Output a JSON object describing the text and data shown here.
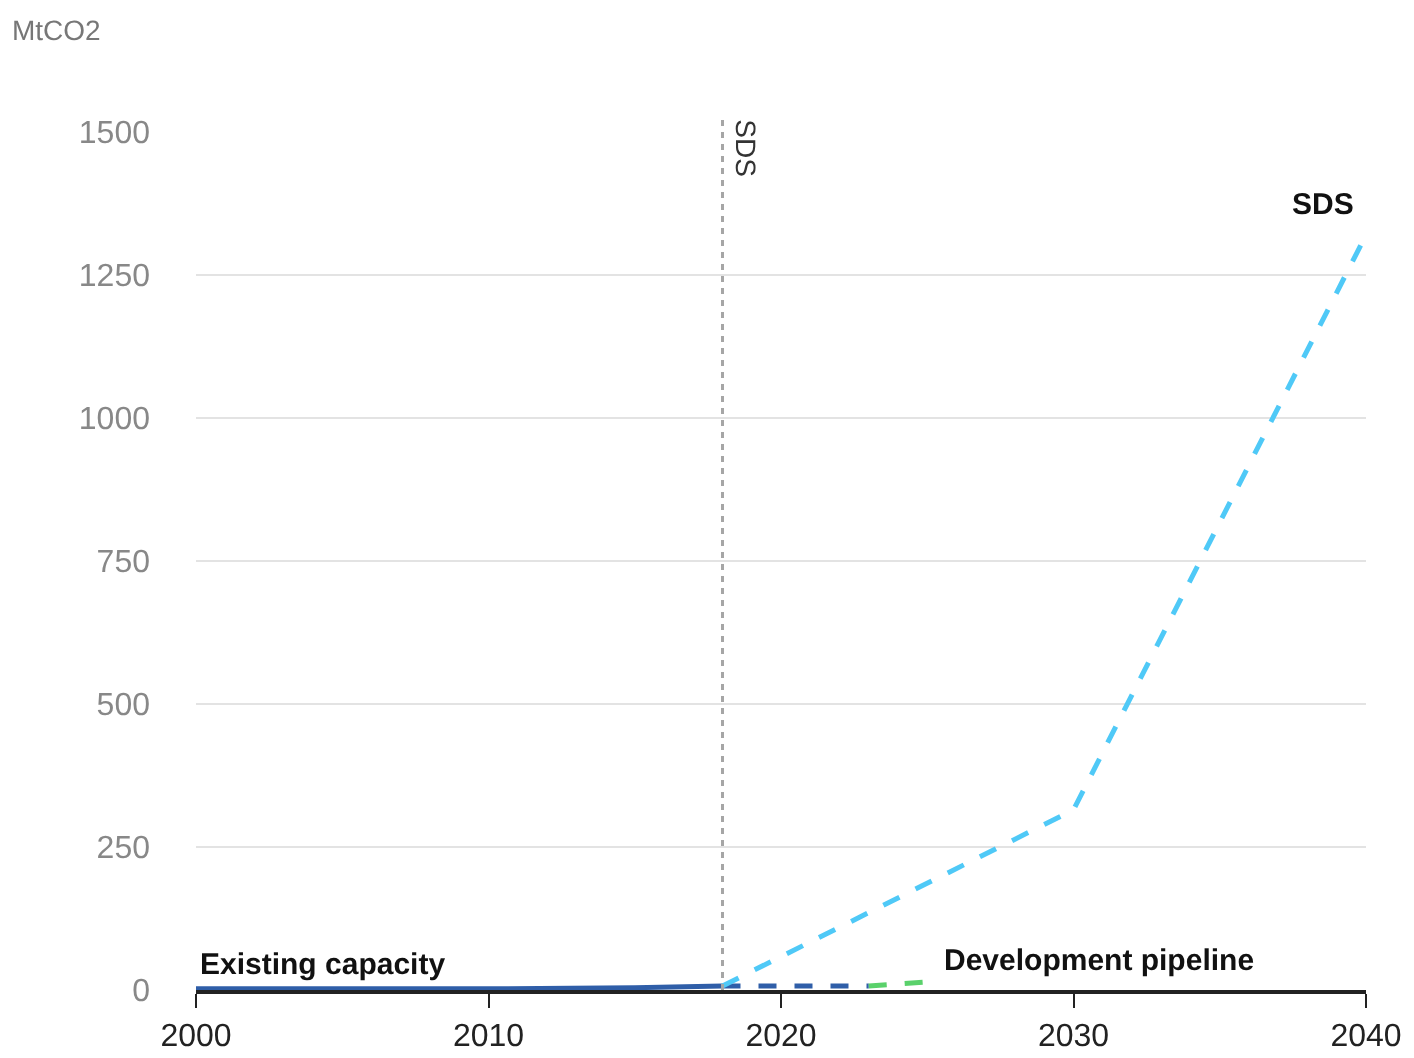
{
  "chart_data": {
    "type": "line",
    "ylabel": "MtCO2",
    "xlim": [
      2000,
      2040
    ],
    "xticks": [
      2000,
      2010,
      2020,
      2030,
      2040
    ],
    "ylim": [
      0,
      1500
    ],
    "yticks": [
      0,
      250,
      500,
      750,
      1000,
      1250,
      1500
    ],
    "grid": "y",
    "legend": false,
    "marker": "none",
    "ref_lines": [
      {
        "axis": "x",
        "value": 2018,
        "label": "SDS",
        "color": "#a6a6a6",
        "line_style": "dotted"
      }
    ],
    "series": [
      {
        "name": "Existing capacity",
        "color": "#2f5ea8",
        "line_style": "solid",
        "x": [
          2000,
          2010,
          2015,
          2018
        ],
        "values": [
          2,
          2,
          4,
          7
        ]
      },
      {
        "color": "#2f5ea8",
        "line_style": "dashed",
        "x": [
          2018,
          2023
        ],
        "values": [
          7,
          7
        ]
      },
      {
        "name": "Development pipeline",
        "color": "#5ad16b",
        "line_style": "dashed",
        "x": [
          2023,
          2025
        ],
        "values": [
          7,
          14
        ]
      },
      {
        "name": "SDS",
        "color": "#4fc9f7",
        "line_style": "dashed",
        "x": [
          2018,
          2030,
          2040
        ],
        "values": [
          7,
          315,
          1320
        ]
      }
    ]
  }
}
